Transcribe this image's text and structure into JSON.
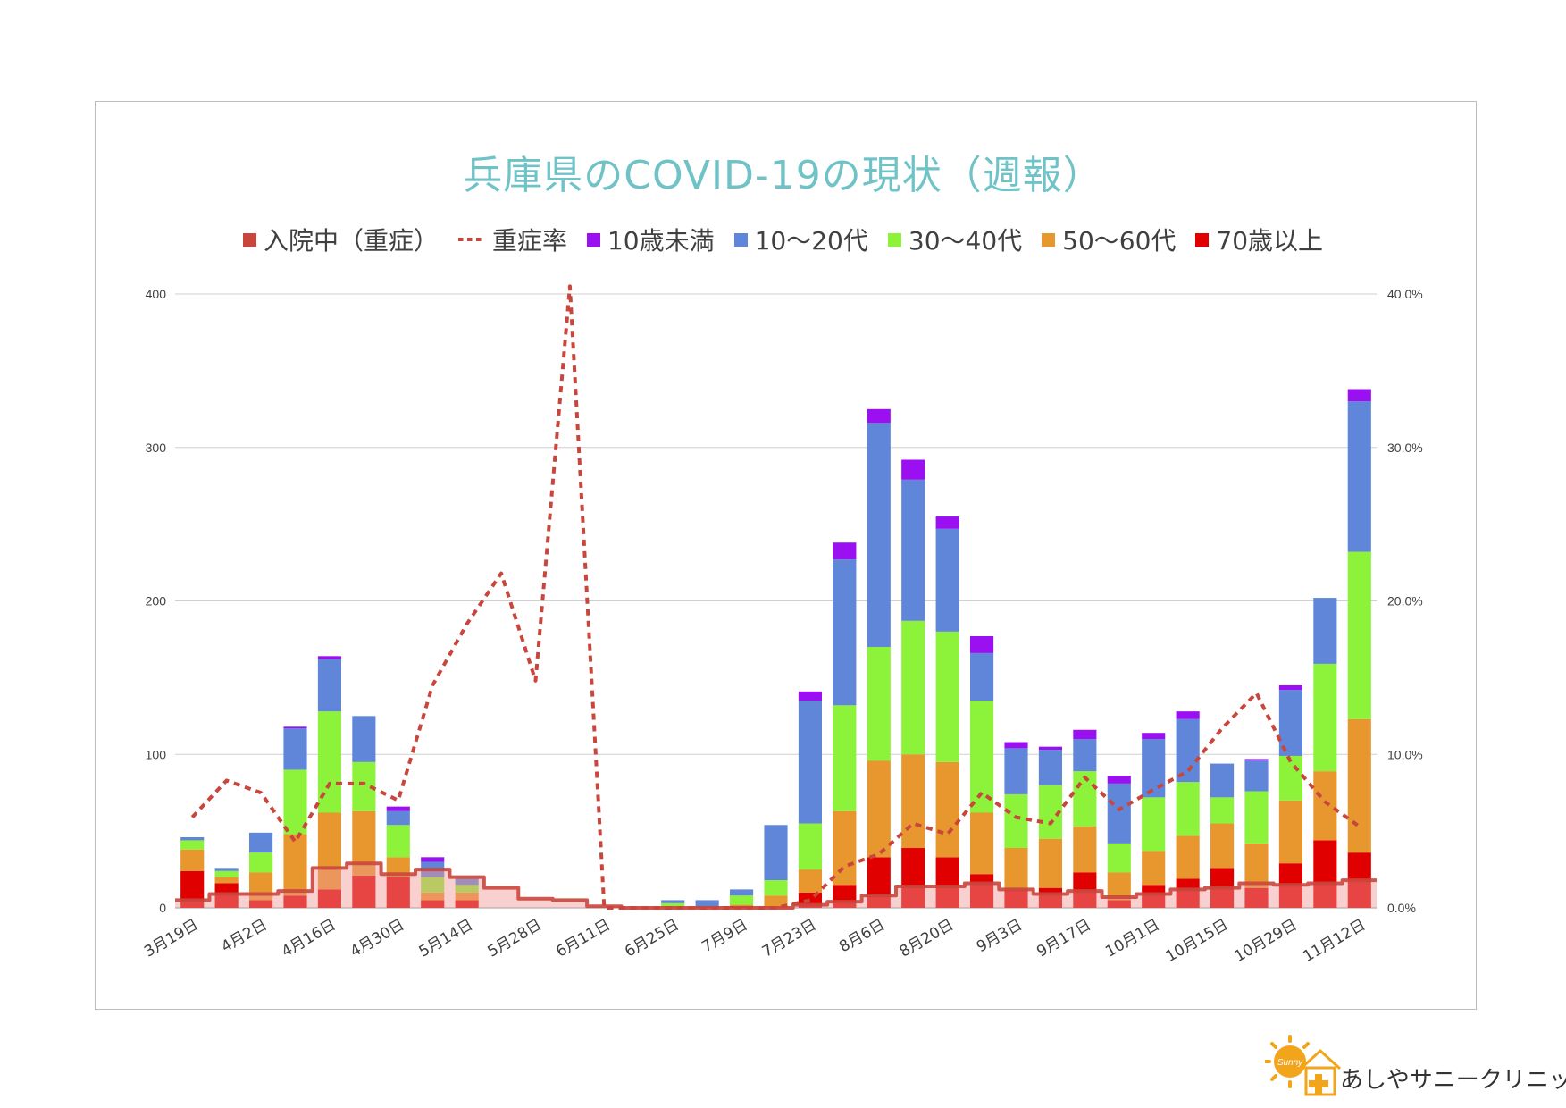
{
  "chart_data": {
    "type": "bar",
    "stacked": true,
    "title": "兵庫県のCOVID-19の現状（週報）",
    "xlabel": "",
    "ylabel": "",
    "ylim": [
      0,
      400
    ],
    "y2lim": [
      0,
      40
    ],
    "y_ticks": [
      "0",
      "100",
      "200",
      "300",
      "400"
    ],
    "y2_ticks": [
      "0.0%",
      "10.0%",
      "20.0%",
      "30.0%",
      "40.0%"
    ],
    "grid": true,
    "legend_position": "top",
    "x_tick_labels": [
      "3月19日",
      "4月2日",
      "4月16日",
      "4月30日",
      "5月14日",
      "5月28日",
      "6月11日",
      "6月25日",
      "7月9日",
      "7月23日",
      "8月6日",
      "8月20日",
      "9月3日",
      "9月17日",
      "10月1日",
      "10月15日",
      "10月29日",
      "11月12日"
    ],
    "categories": [
      "3/19",
      "3/26",
      "4/2",
      "4/9",
      "4/16",
      "4/23",
      "4/30",
      "5/7",
      "5/14",
      "5/21",
      "5/28",
      "6/4",
      "6/11",
      "6/18",
      "6/25",
      "7/2",
      "7/9",
      "7/16",
      "7/23",
      "7/30",
      "8/6",
      "8/13",
      "8/20",
      "8/27",
      "9/3",
      "9/10",
      "9/17",
      "9/24",
      "10/1",
      "10/8",
      "10/15",
      "10/22",
      "10/29",
      "11/5",
      "11/12"
    ],
    "series": [
      {
        "name": "70歳以上",
        "color": "#e00000",
        "values": [
          24,
          16,
          5,
          8,
          12,
          21,
          20,
          5,
          5,
          0,
          0,
          0,
          0,
          0,
          0,
          0,
          1,
          0,
          10,
          15,
          33,
          39,
          33,
          22,
          12,
          13,
          23,
          5,
          15,
          19,
          26,
          13,
          29,
          44,
          36
        ]
      },
      {
        "name": "50〜60代",
        "color": "#e8962e",
        "values": [
          14,
          4,
          18,
          40,
          50,
          42,
          13,
          5,
          5,
          0,
          0,
          0,
          0,
          0,
          1,
          0,
          1,
          8,
          15,
          48,
          63,
          61,
          62,
          40,
          27,
          32,
          30,
          18,
          22,
          28,
          29,
          29,
          41,
          45,
          87
        ]
      },
      {
        "name": "30〜40代",
        "color": "#8cf23a",
        "values": [
          6,
          4,
          13,
          42,
          66,
          32,
          21,
          10,
          5,
          0,
          0,
          0,
          0,
          0,
          2,
          0,
          6,
          10,
          30,
          69,
          74,
          87,
          85,
          73,
          35,
          35,
          36,
          19,
          35,
          35,
          17,
          34,
          29,
          70,
          109
        ]
      },
      {
        "name": "10〜20代",
        "color": "#5f86d8",
        "values": [
          2,
          2,
          13,
          27,
          34,
          30,
          9,
          10,
          4,
          0,
          0,
          0,
          0,
          0,
          2,
          5,
          4,
          36,
          80,
          95,
          146,
          92,
          67,
          31,
          30,
          23,
          21,
          39,
          38,
          41,
          22,
          20,
          43,
          43,
          98
        ]
      },
      {
        "name": "10歳未満",
        "color": "#9b10f0",
        "values": [
          0,
          0,
          0,
          1,
          2,
          0,
          3,
          3,
          0,
          0,
          0,
          0,
          0,
          0,
          0,
          0,
          0,
          0,
          6,
          11,
          9,
          13,
          8,
          11,
          4,
          2,
          6,
          5,
          4,
          5,
          0,
          1,
          3,
          0,
          8
        ]
      }
    ],
    "line_hospitalized_severe": {
      "name": "入院中（重症）",
      "color": "#c9463d",
      "values": [
        5,
        9,
        9,
        11,
        26,
        29,
        22,
        25,
        20,
        13,
        6,
        5,
        1,
        0,
        0,
        0,
        0,
        0,
        2,
        4,
        8,
        14,
        14,
        16,
        12,
        9,
        11,
        7,
        9,
        12,
        13,
        16,
        15,
        16,
        18
      ]
    },
    "line_severe_rate_percent": {
      "name": "重症率",
      "color": "#c9463d",
      "values": [
        5.9,
        8.3,
        7.5,
        4.3,
        8.1,
        8.1,
        7.0,
        14.5,
        18.5,
        21.8,
        14.8,
        40.5,
        0,
        0,
        0,
        0,
        0,
        0,
        0.5,
        2.7,
        3.5,
        5.5,
        4.8,
        7.5,
        5.9,
        5.5,
        8.5,
        6.4,
        7.7,
        8.9,
        11.7,
        14.0,
        9.5,
        6.9,
        5.3
      ]
    }
  },
  "legend": [
    {
      "label": "入院中（重症）",
      "kind": "square",
      "color": "#c9463d"
    },
    {
      "label": "重症率",
      "kind": "dash",
      "color": "#c9463d"
    },
    {
      "label": "10歳未満",
      "kind": "square",
      "color": "#9b10f0"
    },
    {
      "label": "10〜20代",
      "kind": "square",
      "color": "#5f86d8"
    },
    {
      "label": "30〜40代",
      "kind": "square",
      "color": "#8cf23a"
    },
    {
      "label": "50〜60代",
      "kind": "square",
      "color": "#e8962e"
    },
    {
      "label": "70歳以上",
      "kind": "square",
      "color": "#e00000"
    }
  ],
  "logo": {
    "text": "あしやサニークリニック",
    "badge": "Sunny"
  }
}
